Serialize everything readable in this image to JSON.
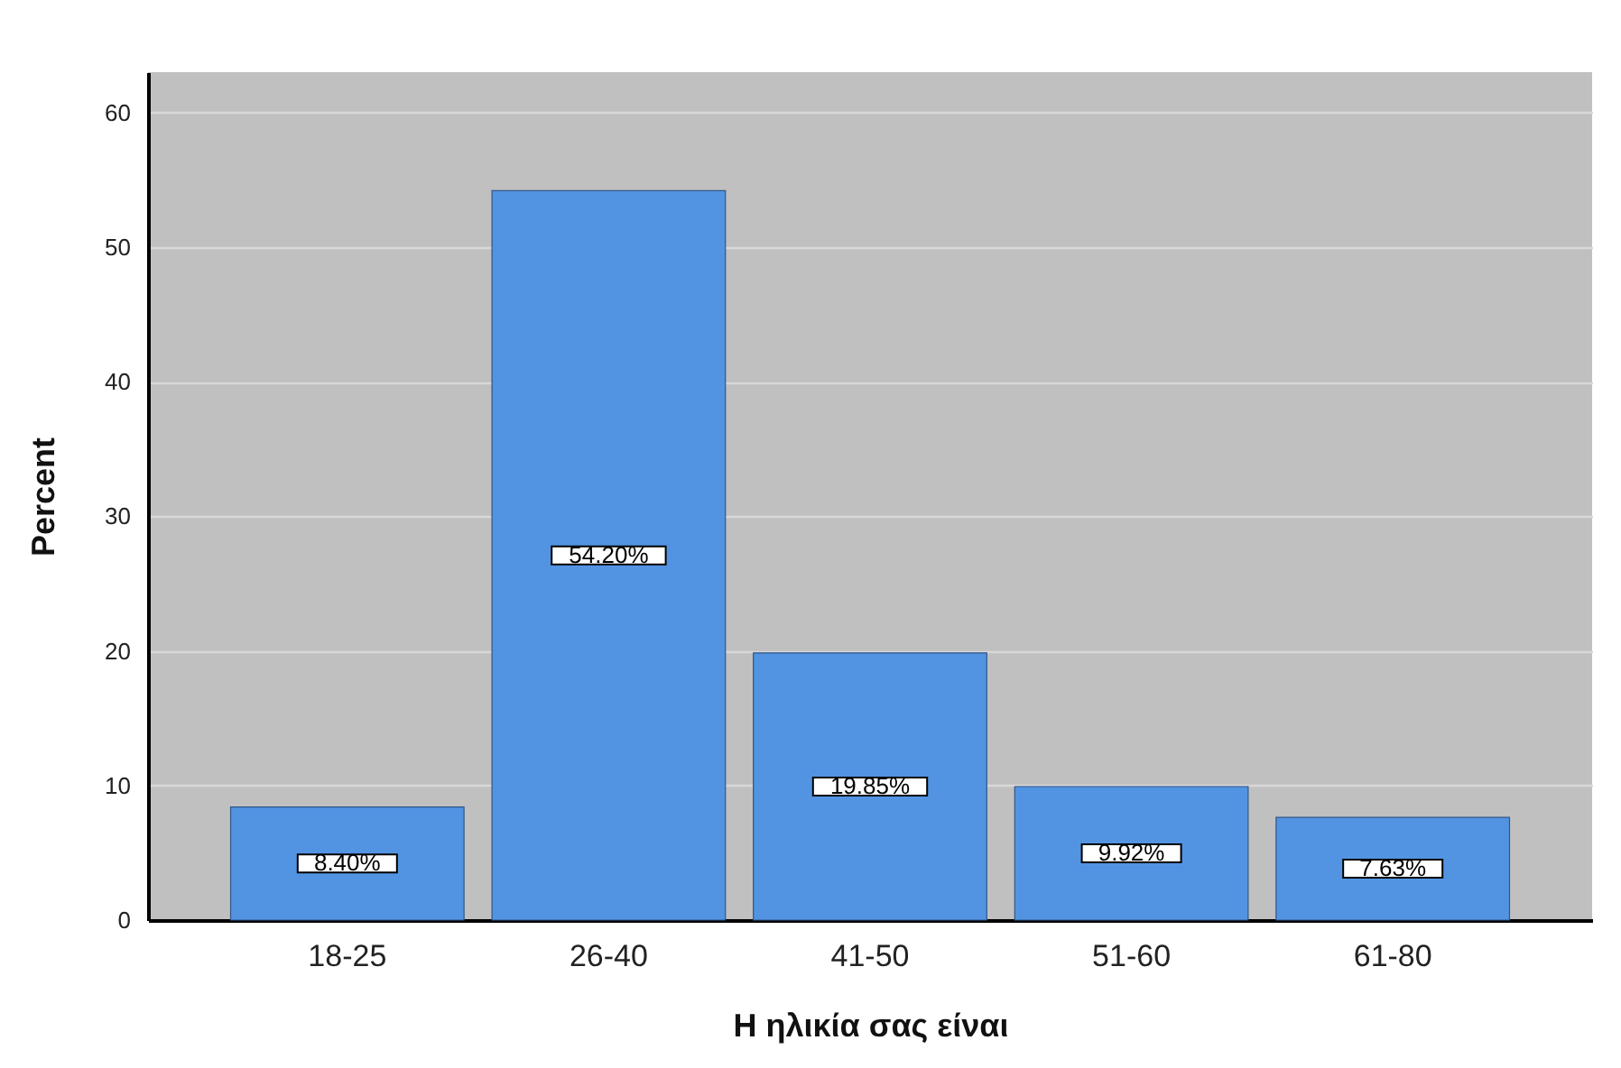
{
  "chart_data": {
    "type": "bar",
    "xlabel": "Η ηλικία σας είναι",
    "ylabel": "Percent",
    "categories": [
      "18-25",
      "26-40",
      "41-50",
      "51-60",
      "61-80"
    ],
    "values": [
      8.4,
      54.2,
      19.85,
      9.92,
      7.63
    ],
    "value_labels": [
      "8.40%",
      "54.20%",
      "19.85%",
      "9.92%",
      "7.63%"
    ],
    "color": "#5294e2",
    "ylim": [
      0,
      63
    ],
    "yticks": [
      0,
      10,
      20,
      30,
      40,
      50,
      60
    ],
    "grid": "y"
  }
}
